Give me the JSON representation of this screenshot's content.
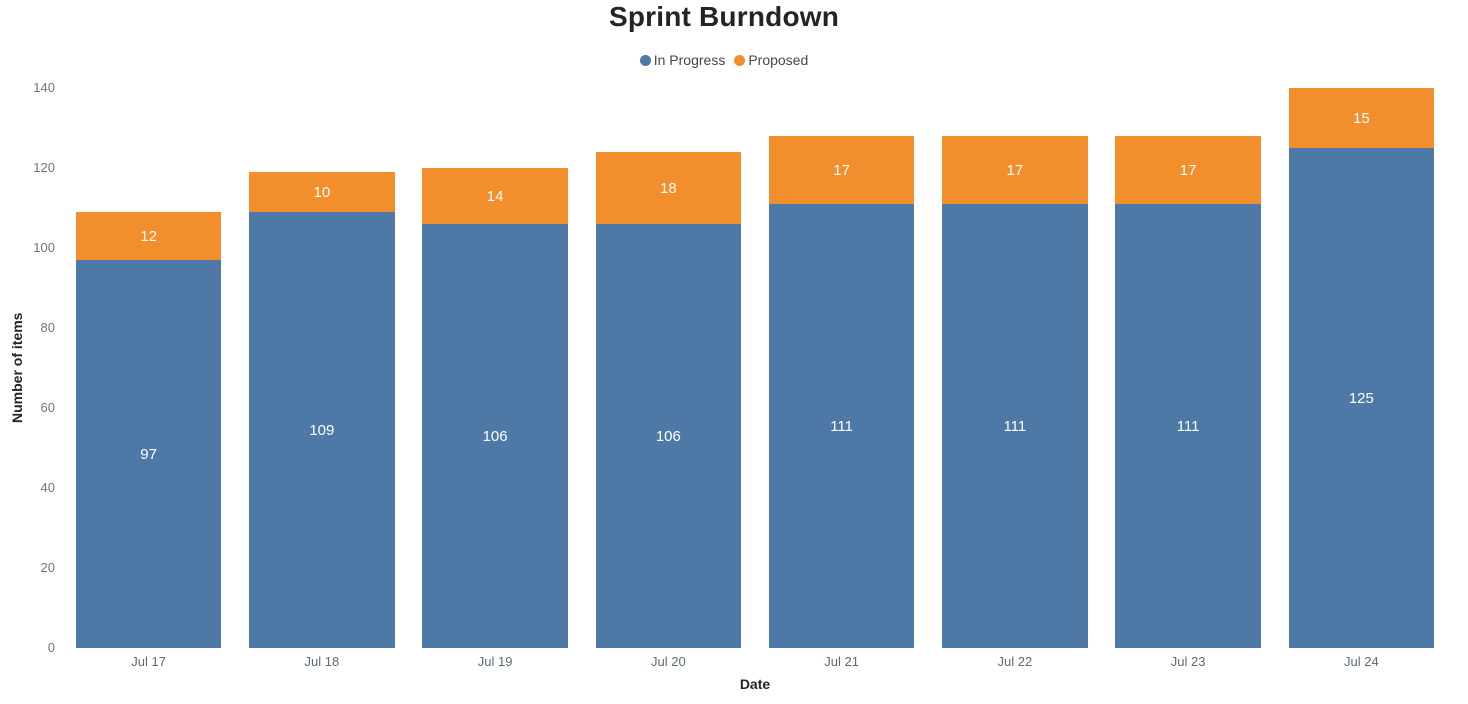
{
  "chart_data": {
    "type": "bar",
    "stacked": true,
    "title": "Sprint Burndown",
    "xlabel": "Date",
    "ylabel": "Number of items",
    "categories": [
      "Jul 17",
      "Jul 18",
      "Jul 19",
      "Jul 20",
      "Jul 21",
      "Jul 22",
      "Jul 23",
      "Jul 24"
    ],
    "series": [
      {
        "name": "In Progress",
        "color": "#4e79a7",
        "values": [
          97,
          109,
          106,
          106,
          111,
          111,
          111,
          125
        ]
      },
      {
        "name": "Proposed",
        "color": "#f28e2b",
        "values": [
          12,
          10,
          14,
          18,
          17,
          17,
          17,
          15
        ]
      }
    ],
    "totals": [
      109,
      119,
      120,
      124,
      128,
      128,
      128,
      140
    ],
    "ylim": [
      0,
      140
    ],
    "yticks": [
      0,
      20,
      40,
      60,
      80,
      100,
      120,
      140
    ],
    "grid": false,
    "legend_position": "top",
    "background": "#ffffff",
    "label_color": "#ffffff"
  }
}
